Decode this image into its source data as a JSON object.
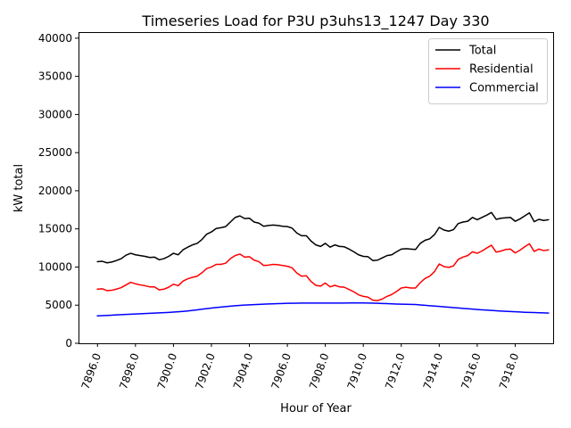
{
  "chart_data": {
    "type": "line",
    "title": "Timeseries Load for P3U p3uhs13_1247  Day 330",
    "xlabel": "Hour of Year",
    "ylabel": "kW total",
    "xlim": [
      7895.0,
      7920.0
    ],
    "ylim": [
      0,
      40800
    ],
    "x_ticks": [
      7896,
      7898,
      7900,
      7902,
      7904,
      7906,
      7908,
      7910,
      7912,
      7914,
      7916,
      7918
    ],
    "x_tick_labels": [
      "7896.0",
      "7898.0",
      "7900.0",
      "7902.0",
      "7904.0",
      "7906.0",
      "7908.0",
      "7910.0",
      "7912.0",
      "7914.0",
      "7916.0",
      "7918.0"
    ],
    "y_ticks": [
      0,
      5000,
      10000,
      15000,
      20000,
      25000,
      30000,
      35000,
      40000
    ],
    "y_tick_labels": [
      "0",
      "5000",
      "10000",
      "15000",
      "20000",
      "25000",
      "30000",
      "35000",
      "40000"
    ],
    "legend_position": "top-right",
    "x_start": 7896.0,
    "x_step": 0.25,
    "series": [
      {
        "name": "Total",
        "color": "#000000",
        "values": [
          10700,
          10750,
          10550,
          10650,
          10850,
          11100,
          11550,
          11800,
          11600,
          11500,
          11400,
          11250,
          11300,
          10950,
          11100,
          11400,
          11800,
          11600,
          12250,
          12600,
          12900,
          13100,
          13600,
          14300,
          14600,
          15050,
          15150,
          15300,
          15900,
          16500,
          16700,
          16350,
          16400,
          15900,
          15750,
          15350,
          15450,
          15500,
          15450,
          15350,
          15300,
          15100,
          14450,
          14100,
          14100,
          13400,
          12900,
          12700,
          13100,
          12600,
          12900,
          12700,
          12650,
          12350,
          12000,
          11600,
          11400,
          11350,
          10850,
          10900,
          11200,
          11500,
          11600,
          12000,
          12350,
          12400,
          12350,
          12300,
          13100,
          13500,
          13700,
          14250,
          15200,
          14850,
          14700,
          14900,
          15700,
          15900,
          16000,
          16500,
          16200,
          16500,
          16800,
          17150,
          16250,
          16400,
          16450,
          16500,
          16000,
          16300,
          16700,
          17100,
          15950,
          16250,
          16100,
          16200
        ]
      },
      {
        "name": "Residential",
        "color": "#ff0000",
        "values": [
          7100,
          7150,
          6900,
          6950,
          7100,
          7300,
          7650,
          8000,
          7800,
          7650,
          7550,
          7400,
          7400,
          7000,
          7100,
          7350,
          7750,
          7550,
          8150,
          8450,
          8650,
          8800,
          9250,
          9800,
          10000,
          10350,
          10350,
          10500,
          11100,
          11500,
          11700,
          11300,
          11350,
          10900,
          10700,
          10200,
          10250,
          10350,
          10300,
          10200,
          10100,
          9900,
          9200,
          8800,
          8850,
          8100,
          7600,
          7500,
          7900,
          7400,
          7600,
          7400,
          7350,
          7050,
          6750,
          6350,
          6150,
          6050,
          5650,
          5600,
          5800,
          6150,
          6400,
          6800,
          7250,
          7350,
          7250,
          7250,
          7950,
          8500,
          8800,
          9400,
          10400,
          10050,
          9950,
          10150,
          11000,
          11300,
          11500,
          12000,
          11800,
          12100,
          12500,
          12850,
          11950,
          12100,
          12300,
          12350,
          11850,
          12200,
          12650,
          13050,
          12050,
          12350,
          12150,
          12250
        ]
      },
      {
        "name": "Commercial",
        "color": "#0000ff",
        "values": [
          3600,
          3630,
          3660,
          3690,
          3720,
          3750,
          3780,
          3810,
          3840,
          3870,
          3900,
          3930,
          3960,
          3990,
          4020,
          4050,
          4090,
          4130,
          4180,
          4240,
          4310,
          4390,
          4470,
          4550,
          4620,
          4690,
          4750,
          4810,
          4870,
          4930,
          4970,
          5010,
          5040,
          5070,
          5100,
          5130,
          5160,
          5180,
          5200,
          5220,
          5240,
          5250,
          5260,
          5270,
          5280,
          5280,
          5280,
          5280,
          5280,
          5280,
          5280,
          5280,
          5280,
          5290,
          5290,
          5290,
          5290,
          5280,
          5260,
          5240,
          5220,
          5200,
          5180,
          5150,
          5130,
          5110,
          5100,
          5080,
          5030,
          4980,
          4930,
          4880,
          4830,
          4780,
          4730,
          4680,
          4630,
          4580,
          4530,
          4480,
          4430,
          4390,
          4350,
          4310,
          4270,
          4230,
          4190,
          4160,
          4130,
          4100,
          4070,
          4050,
          4030,
          4010,
          3990,
          3970
        ]
      }
    ]
  }
}
